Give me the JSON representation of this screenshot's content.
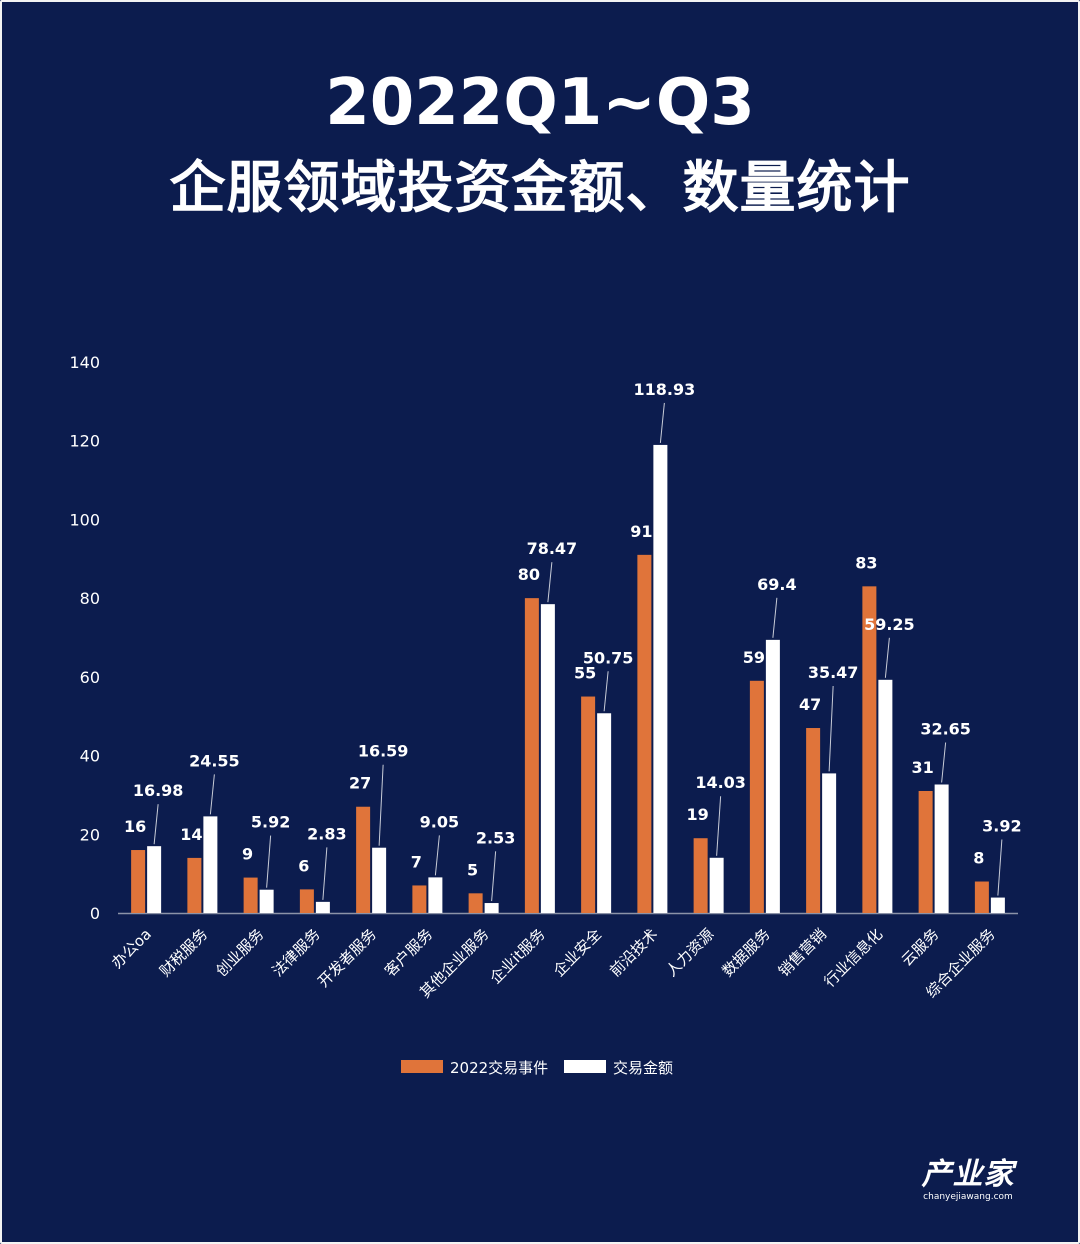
{
  "title": {
    "line1": "2022Q1~Q3",
    "line2": "企服领域投资金额、数量统计"
  },
  "logo": {
    "name": "产业家",
    "url": "chanyejiawang.com"
  },
  "colors": {
    "background": "#0c1c4e",
    "series1": "#e0743a",
    "series2": "#ffffff",
    "text": "#ffffff"
  },
  "chart_data": {
    "type": "bar",
    "ylim": [
      0,
      140
    ],
    "yticks": [
      0,
      20,
      40,
      60,
      80,
      100,
      120,
      140
    ],
    "grid": false,
    "legend_position": "bottom-center",
    "categories": [
      "办公oa",
      "财税服务",
      "创业服务",
      "法律服务",
      "开发者服务",
      "客户服务",
      "其他企业服务",
      "企业it服务",
      "企业安全",
      "前沿技术",
      "人力资源",
      "数据服务",
      "销售营销",
      "行业信息化",
      "云服务",
      "综合企业服务"
    ],
    "series": [
      {
        "name": "2022交易事件",
        "values": [
          16,
          14,
          9,
          6,
          27,
          7,
          5,
          80,
          55,
          91,
          19,
          59,
          47,
          83,
          31,
          8
        ],
        "labels": [
          "16",
          "14",
          "9",
          "6",
          "27",
          "7",
          "5",
          "80",
          "55",
          "91",
          "19",
          "59",
          "47",
          "83",
          "31",
          "8"
        ]
      },
      {
        "name": "交易金额",
        "values": [
          16.98,
          24.55,
          5.92,
          2.83,
          16.59,
          9.05,
          2.53,
          78.47,
          50.75,
          118.93,
          14.03,
          69.4,
          35.47,
          59.25,
          32.65,
          3.92
        ],
        "labels": [
          "16.98",
          "24.55",
          "5.92",
          "2.83",
          "16.59",
          "9.05",
          "2.53",
          "78.47",
          "50.75",
          "118.93",
          "14.03",
          "69.4",
          "35.47",
          "59.25",
          "32.65",
          "3.92"
        ]
      }
    ]
  }
}
